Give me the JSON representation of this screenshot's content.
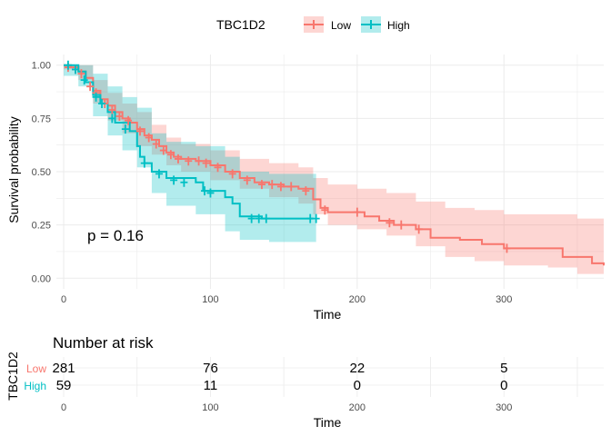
{
  "legend": {
    "title": "TBC1D2",
    "items": [
      {
        "label": "Low",
        "color": "#F8766D"
      },
      {
        "label": "High",
        "color": "#00BFC4"
      }
    ]
  },
  "p_value_text": "p = 0.16",
  "risk_table": {
    "title": "Number at risk",
    "ylabel": "TBC1D2",
    "xlabel": "Time",
    "times": [
      "0",
      "100",
      "200",
      "300"
    ],
    "rows": [
      {
        "label": "Low",
        "color": "#F8766D",
        "values": [
          "281",
          "76",
          "22",
          "5"
        ]
      },
      {
        "label": "High",
        "color": "#00BFC4",
        "values": [
          "59",
          "11",
          "0",
          "0"
        ]
      }
    ]
  },
  "chart_data": {
    "type": "line",
    "xlabel": "Time",
    "ylabel": "Survival probability",
    "xlim": [
      -5,
      368
    ],
    "ylim": [
      -0.05,
      1.05
    ],
    "xticks": [
      "0",
      "100",
      "200",
      "300"
    ],
    "yticks": [
      "0.00",
      "0.25",
      "0.50",
      "0.75",
      "1.00"
    ],
    "grid": true,
    "legend_position": "top",
    "series": [
      {
        "name": "Low",
        "color": "#F8766D",
        "points": [
          [
            0,
            1.0
          ],
          [
            5,
            0.99
          ],
          [
            10,
            0.97
          ],
          [
            15,
            0.94
          ],
          [
            20,
            0.88
          ],
          [
            25,
            0.84
          ],
          [
            30,
            0.81
          ],
          [
            35,
            0.78
          ],
          [
            40,
            0.75
          ],
          [
            45,
            0.73
          ],
          [
            50,
            0.7
          ],
          [
            55,
            0.67
          ],
          [
            60,
            0.65
          ],
          [
            65,
            0.62
          ],
          [
            70,
            0.59
          ],
          [
            75,
            0.57
          ],
          [
            80,
            0.56
          ],
          [
            90,
            0.55
          ],
          [
            100,
            0.53
          ],
          [
            110,
            0.5
          ],
          [
            120,
            0.47
          ],
          [
            130,
            0.45
          ],
          [
            140,
            0.44
          ],
          [
            150,
            0.43
          ],
          [
            160,
            0.42
          ],
          [
            170,
            0.37
          ],
          [
            175,
            0.33
          ],
          [
            180,
            0.31
          ],
          [
            200,
            0.31
          ],
          [
            205,
            0.29
          ],
          [
            215,
            0.27
          ],
          [
            225,
            0.25
          ],
          [
            240,
            0.23
          ],
          [
            250,
            0.19
          ],
          [
            260,
            0.19
          ],
          [
            270,
            0.18
          ],
          [
            285,
            0.16
          ],
          [
            300,
            0.14
          ],
          [
            330,
            0.14
          ],
          [
            340,
            0.1
          ],
          [
            360,
            0.07
          ],
          [
            368,
            0.06
          ]
        ],
        "lower": [
          [
            0,
            0.98
          ],
          [
            10,
            0.93
          ],
          [
            20,
            0.82
          ],
          [
            30,
            0.74
          ],
          [
            40,
            0.68
          ],
          [
            50,
            0.62
          ],
          [
            60,
            0.58
          ],
          [
            70,
            0.53
          ],
          [
            80,
            0.5
          ],
          [
            100,
            0.46
          ],
          [
            120,
            0.42
          ],
          [
            140,
            0.38
          ],
          [
            160,
            0.35
          ],
          [
            170,
            0.3
          ],
          [
            180,
            0.25
          ],
          [
            200,
            0.23
          ],
          [
            220,
            0.2
          ],
          [
            240,
            0.15
          ],
          [
            260,
            0.1
          ],
          [
            280,
            0.08
          ],
          [
            300,
            0.06
          ],
          [
            330,
            0.05
          ],
          [
            350,
            0.02
          ],
          [
            368,
            0.0
          ]
        ],
        "upper": [
          [
            0,
            1.0
          ],
          [
            10,
            1.0
          ],
          [
            20,
            0.93
          ],
          [
            30,
            0.87
          ],
          [
            40,
            0.82
          ],
          [
            50,
            0.78
          ],
          [
            60,
            0.72
          ],
          [
            70,
            0.66
          ],
          [
            80,
            0.63
          ],
          [
            100,
            0.6
          ],
          [
            120,
            0.56
          ],
          [
            140,
            0.54
          ],
          [
            160,
            0.52
          ],
          [
            170,
            0.47
          ],
          [
            180,
            0.44
          ],
          [
            200,
            0.42
          ],
          [
            220,
            0.4
          ],
          [
            240,
            0.36
          ],
          [
            260,
            0.33
          ],
          [
            280,
            0.32
          ],
          [
            300,
            0.3
          ],
          [
            330,
            0.3
          ],
          [
            350,
            0.28
          ],
          [
            368,
            0.27
          ]
        ],
        "censored": [
          [
            3,
            0.99
          ],
          [
            8,
            0.98
          ],
          [
            12,
            0.96
          ],
          [
            18,
            0.9
          ],
          [
            22,
            0.87
          ],
          [
            28,
            0.82
          ],
          [
            33,
            0.79
          ],
          [
            38,
            0.76
          ],
          [
            44,
            0.74
          ],
          [
            52,
            0.69
          ],
          [
            58,
            0.66
          ],
          [
            63,
            0.63
          ],
          [
            68,
            0.6
          ],
          [
            73,
            0.58
          ],
          [
            78,
            0.56
          ],
          [
            85,
            0.55
          ],
          [
            92,
            0.55
          ],
          [
            97,
            0.54
          ],
          [
            105,
            0.52
          ],
          [
            115,
            0.49
          ],
          [
            125,
            0.46
          ],
          [
            135,
            0.44
          ],
          [
            142,
            0.44
          ],
          [
            148,
            0.43
          ],
          [
            155,
            0.43
          ],
          [
            165,
            0.41
          ],
          [
            178,
            0.32
          ],
          [
            200,
            0.31
          ],
          [
            222,
            0.26
          ],
          [
            230,
            0.25
          ],
          [
            242,
            0.23
          ],
          [
            302,
            0.14
          ]
        ]
      },
      {
        "name": "High",
        "color": "#00BFC4",
        "points": [
          [
            0,
            1.0
          ],
          [
            10,
            0.97
          ],
          [
            15,
            0.92
          ],
          [
            20,
            0.86
          ],
          [
            25,
            0.82
          ],
          [
            30,
            0.78
          ],
          [
            35,
            0.73
          ],
          [
            45,
            0.69
          ],
          [
            50,
            0.62
          ],
          [
            52,
            0.57
          ],
          [
            55,
            0.54
          ],
          [
            60,
            0.5
          ],
          [
            70,
            0.47
          ],
          [
            90,
            0.45
          ],
          [
            95,
            0.41
          ],
          [
            110,
            0.38
          ],
          [
            115,
            0.35
          ],
          [
            120,
            0.29
          ],
          [
            135,
            0.28
          ],
          [
            170,
            0.28
          ]
        ],
        "lower": [
          [
            0,
            0.95
          ],
          [
            10,
            0.9
          ],
          [
            20,
            0.76
          ],
          [
            30,
            0.67
          ],
          [
            40,
            0.6
          ],
          [
            50,
            0.52
          ],
          [
            60,
            0.4
          ],
          [
            70,
            0.34
          ],
          [
            90,
            0.3
          ],
          [
            110,
            0.22
          ],
          [
            120,
            0.18
          ],
          [
            140,
            0.17
          ],
          [
            172,
            0.17
          ]
        ],
        "upper": [
          [
            0,
            1.0
          ],
          [
            10,
            1.0
          ],
          [
            20,
            0.96
          ],
          [
            30,
            0.9
          ],
          [
            40,
            0.85
          ],
          [
            50,
            0.8
          ],
          [
            60,
            0.68
          ],
          [
            70,
            0.64
          ],
          [
            90,
            0.62
          ],
          [
            110,
            0.57
          ],
          [
            120,
            0.5
          ],
          [
            140,
            0.49
          ],
          [
            172,
            0.49
          ]
        ],
        "censored": [
          [
            3,
            1.0
          ],
          [
            8,
            0.98
          ],
          [
            14,
            0.93
          ],
          [
            22,
            0.85
          ],
          [
            26,
            0.82
          ],
          [
            33,
            0.75
          ],
          [
            42,
            0.7
          ],
          [
            55,
            0.54
          ],
          [
            65,
            0.49
          ],
          [
            75,
            0.46
          ],
          [
            82,
            0.45
          ],
          [
            96,
            0.41
          ],
          [
            100,
            0.4
          ],
          [
            128,
            0.28
          ],
          [
            133,
            0.28
          ],
          [
            138,
            0.28
          ],
          [
            168,
            0.28
          ],
          [
            172,
            0.28
          ]
        ]
      }
    ]
  }
}
